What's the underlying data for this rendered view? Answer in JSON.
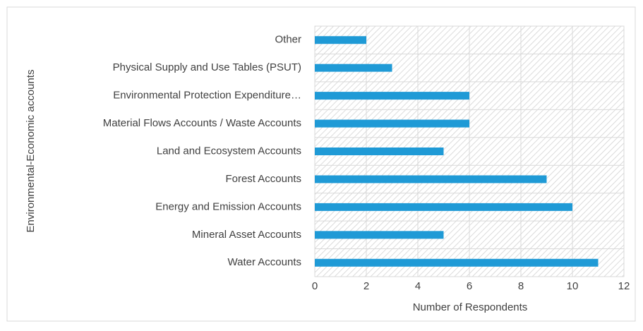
{
  "chart_data": {
    "type": "barh",
    "categories": [
      "Other",
      "Physical Supply and Use Tables (PSUT)",
      "Environmental Protection Expenditure…",
      "Material Flows Accounts / Waste Accounts",
      "Land and Ecosystem Accounts",
      "Forest Accounts",
      "Energy and Emission Accounts",
      "Mineral Asset Accounts",
      "Water Accounts"
    ],
    "values": [
      2,
      3,
      6,
      6,
      5,
      9,
      10,
      5,
      11
    ],
    "color": "#1f9ad6",
    "xlabel": "Number of Respondents",
    "ylabel": "Environmental-Economic accounts",
    "xlim": [
      0,
      12
    ],
    "xticks": [
      0,
      2,
      4,
      6,
      8,
      10,
      12
    ],
    "grid": true
  }
}
